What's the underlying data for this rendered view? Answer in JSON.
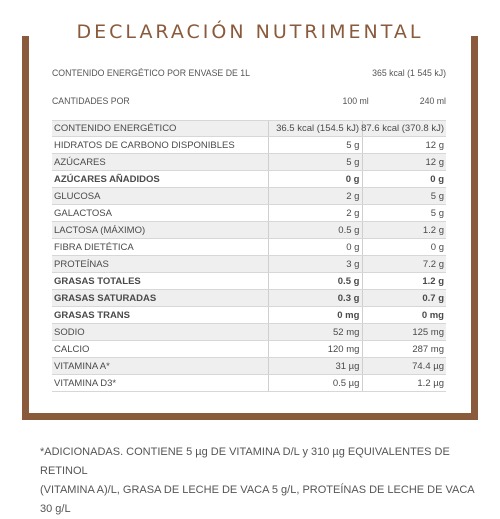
{
  "title": "DECLARACIÓN NUTRIMENTAL",
  "energy_header": {
    "label": "CONTENIDO ENERGÉTICO POR ENVASE DE 1L",
    "value": "365 kcal (1 545 kJ)"
  },
  "portions_header": {
    "label": "CANTIDADES POR",
    "col1": "100 ml",
    "col2": "240  ml"
  },
  "rows": [
    {
      "label": "CONTENIDO ENERGÉTICO",
      "v1": "36.5 kcal (154.5 kJ)",
      "v2": "87.6 kcal (370.8 kJ)"
    },
    {
      "label": "HIDRATOS DE CARBONO DISPONIBLES",
      "v1": "5 g",
      "v2": "12 g"
    },
    {
      "label": "AZÚCARES",
      "v1": "5 g",
      "v2": "12 g"
    },
    {
      "label": "AZÚCARES AÑADIDOS",
      "v1": "0 g",
      "v2": "0 g"
    },
    {
      "label": "GLUCOSA",
      "v1": "2 g",
      "v2": "5 g"
    },
    {
      "label": "GALACTOSA",
      "v1": "2 g",
      "v2": "5 g"
    },
    {
      "label": "LACTOSA (MÁXIMO)",
      "v1": "0.5 g",
      "v2": "1.2 g"
    },
    {
      "label": "FIBRA DIETÉTICA",
      "v1": "0 g",
      "v2": "0 g"
    },
    {
      "label": "PROTEÍNAS",
      "v1": "3 g",
      "v2": "7.2 g"
    },
    {
      "label": "GRASAS TOTALES",
      "v1": "0.5 g",
      "v2": "1.2 g"
    },
    {
      "label": "GRASAS SATURADAS",
      "v1": "0.3 g",
      "v2": "0.7 g"
    },
    {
      "label": "GRASAS TRANS",
      "v1": "0 mg",
      "v2": "0 mg"
    },
    {
      "label": "SODIO",
      "v1": "52 mg",
      "v2": "125 mg"
    },
    {
      "label": "CALCIO",
      "v1": "120 mg",
      "v2": "287 mg"
    },
    {
      "label": "VITAMINA A*",
      "v1": "31 µg",
      "v2": "74.4 µg"
    },
    {
      "label": "VITAMINA D3*",
      "v1": "0.5 µg",
      "v2": "1.2 µg"
    }
  ],
  "footnote_line1": "*ADICIONADAS. CONTIENE 5 µg DE VITAMINA D/L y 310 µg EQUIVALENTES DE RETINOL",
  "footnote_line2": "(VITAMINA A)/L, GRASA DE LECHE DE VACA 5 g/L, PROTEÍNAS DE LECHE DE VACA 30 g/L",
  "colors": {
    "frame": "#8a5a3c",
    "text": "#4a4a4a",
    "shade": "#efefef"
  }
}
